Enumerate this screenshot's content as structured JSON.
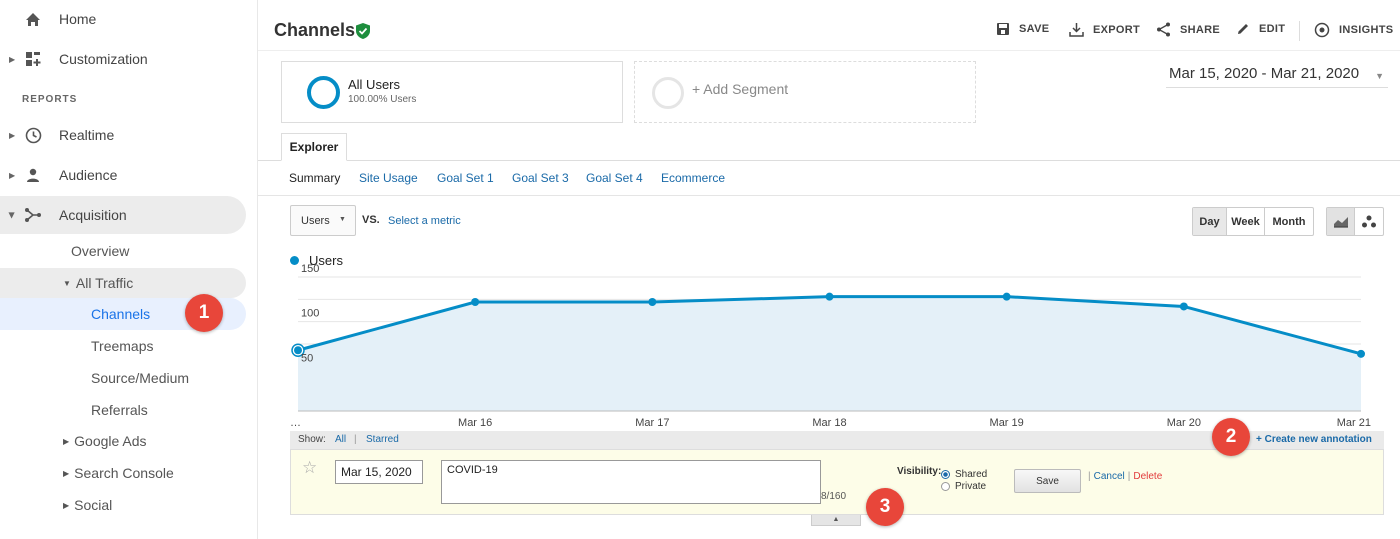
{
  "sidebar": {
    "home": "Home",
    "customization": "Customization",
    "reports_heading": "REPORTS",
    "realtime": "Realtime",
    "audience": "Audience",
    "acquisition": "Acquisition",
    "overview": "Overview",
    "all_traffic": "All Traffic",
    "channels": "Channels",
    "treemaps": "Treemaps",
    "source_medium": "Source/Medium",
    "referrals": "Referrals",
    "google_ads": "Google Ads",
    "search_console": "Search Console",
    "social": "Social"
  },
  "header": {
    "title": "Channels",
    "save": "SAVE",
    "export": "EXPORT",
    "share": "SHARE",
    "edit": "EDIT",
    "insights": "INSIGHTS"
  },
  "segments": {
    "active_name": "All Users",
    "active_pct": "100.00% Users",
    "add_label": "+ Add Segment"
  },
  "date_range": "Mar 15, 2020 - Mar 21, 2020",
  "explorer_tab": "Explorer",
  "subtabs": [
    "Summary",
    "Site Usage",
    "Goal Set 1",
    "Goal Set 3",
    "Goal Set 4",
    "Ecommerce"
  ],
  "controls": {
    "metric": "Users",
    "vs": "VS.",
    "select_metric": "Select a metric",
    "day": "Day",
    "week": "Week",
    "month": "Month"
  },
  "chart_data": {
    "type": "area",
    "series": [
      {
        "name": "Users",
        "values": [
          68,
          122,
          122,
          128,
          128,
          117,
          64
        ]
      }
    ],
    "categories": [
      "Mar 15",
      "Mar 16",
      "Mar 17",
      "Mar 18",
      "Mar 19",
      "Mar 20",
      "Mar 21"
    ],
    "x_tick_labels": [
      "…",
      "Mar 16",
      "Mar 17",
      "Mar 18",
      "Mar 19",
      "Mar 20",
      "Mar 21"
    ],
    "y_ticks": [
      50,
      100,
      150
    ],
    "ylim": [
      0,
      150
    ],
    "grid": true,
    "color": "#058dc7",
    "fill": "#e4f0f8"
  },
  "annotations": {
    "show_label": "Show:",
    "all": "All",
    "separator": "|",
    "starred": "Starred",
    "create_new": "+ Create new annotation",
    "date": "Mar 15, 2020",
    "text": "COVID-19",
    "char_count": "8/160",
    "visibility_label": "Visibility:",
    "shared": "Shared",
    "private": "Private",
    "save_button": "Save",
    "cancel": "Cancel",
    "delete": "Delete"
  },
  "callouts": [
    "1",
    "2",
    "3"
  ],
  "colors": {
    "accent": "#058dc7",
    "link": "#1a6aa8",
    "badge": "#e8463a",
    "active_nav": "#e8f0fe"
  }
}
